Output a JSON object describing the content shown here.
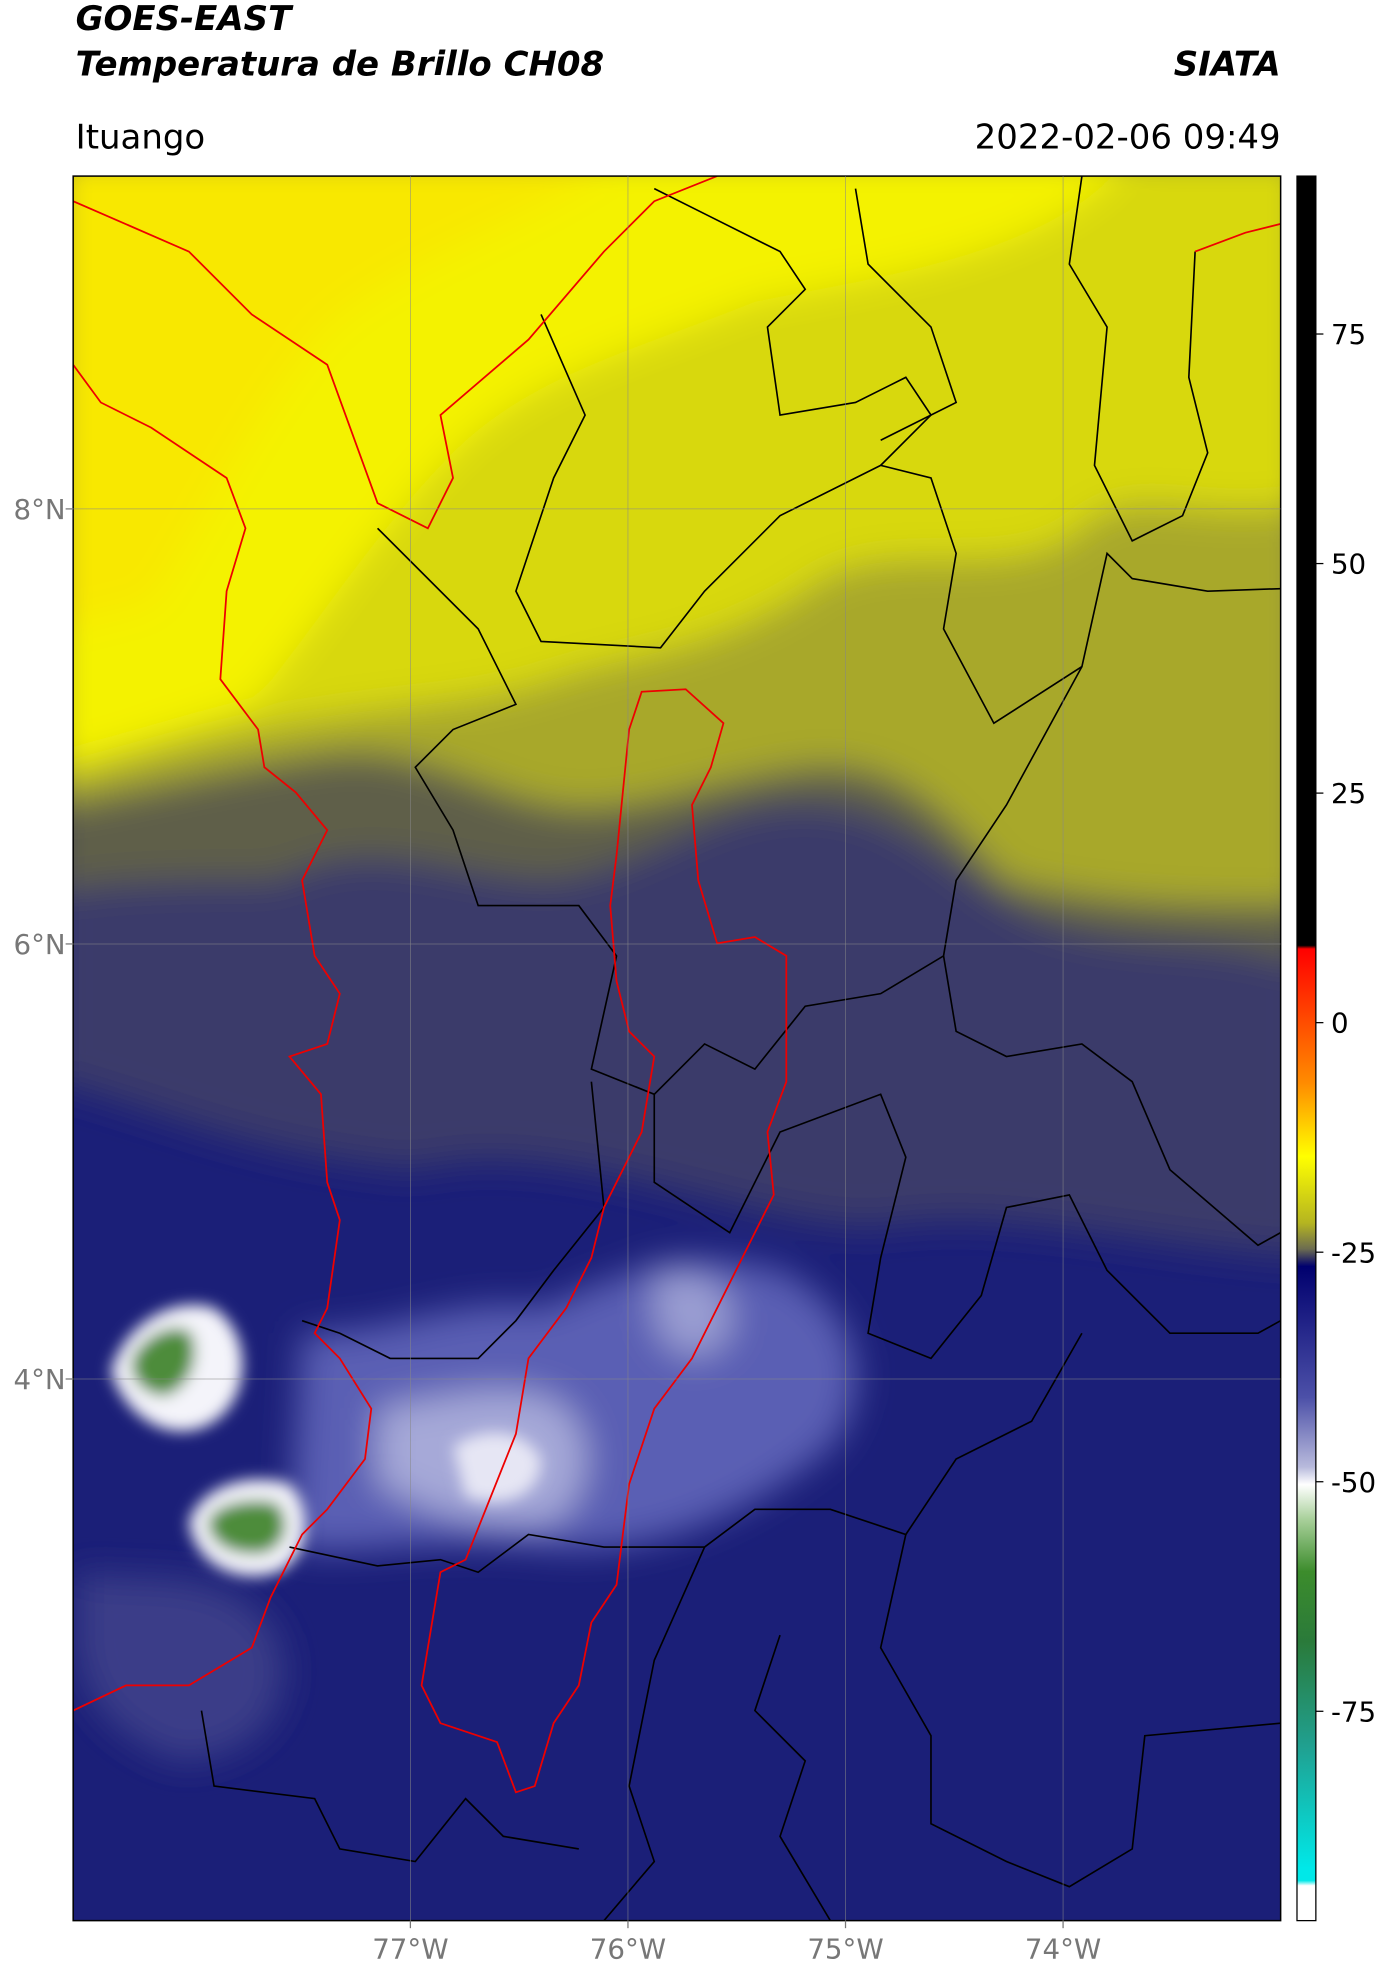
{
  "header": {
    "title": "GOES-EAST",
    "subtitle": "Temperatura de Brillo CH08",
    "source": "SIATA",
    "location": "Ituango",
    "datetime": "2022-02-06 09:49"
  },
  "map": {
    "lonlim": [
      -78.55,
      -73.0
    ],
    "latlim": [
      1.51,
      9.53
    ],
    "lonticks": [
      {
        "value": -77,
        "label": "77°W"
      },
      {
        "value": -76,
        "label": "76°W"
      },
      {
        "value": -75,
        "label": "75°W"
      },
      {
        "value": -74,
        "label": "74°W"
      }
    ],
    "latticks": [
      {
        "value": 8,
        "label": "8°N"
      },
      {
        "value": 6,
        "label": "6°N"
      },
      {
        "value": 4,
        "label": "4°N"
      }
    ]
  },
  "colorbar": {
    "range": [
      -97.8,
      92.2
    ],
    "ticks": [
      75,
      50,
      25,
      0,
      -25,
      -50,
      -75
    ]
  }
}
